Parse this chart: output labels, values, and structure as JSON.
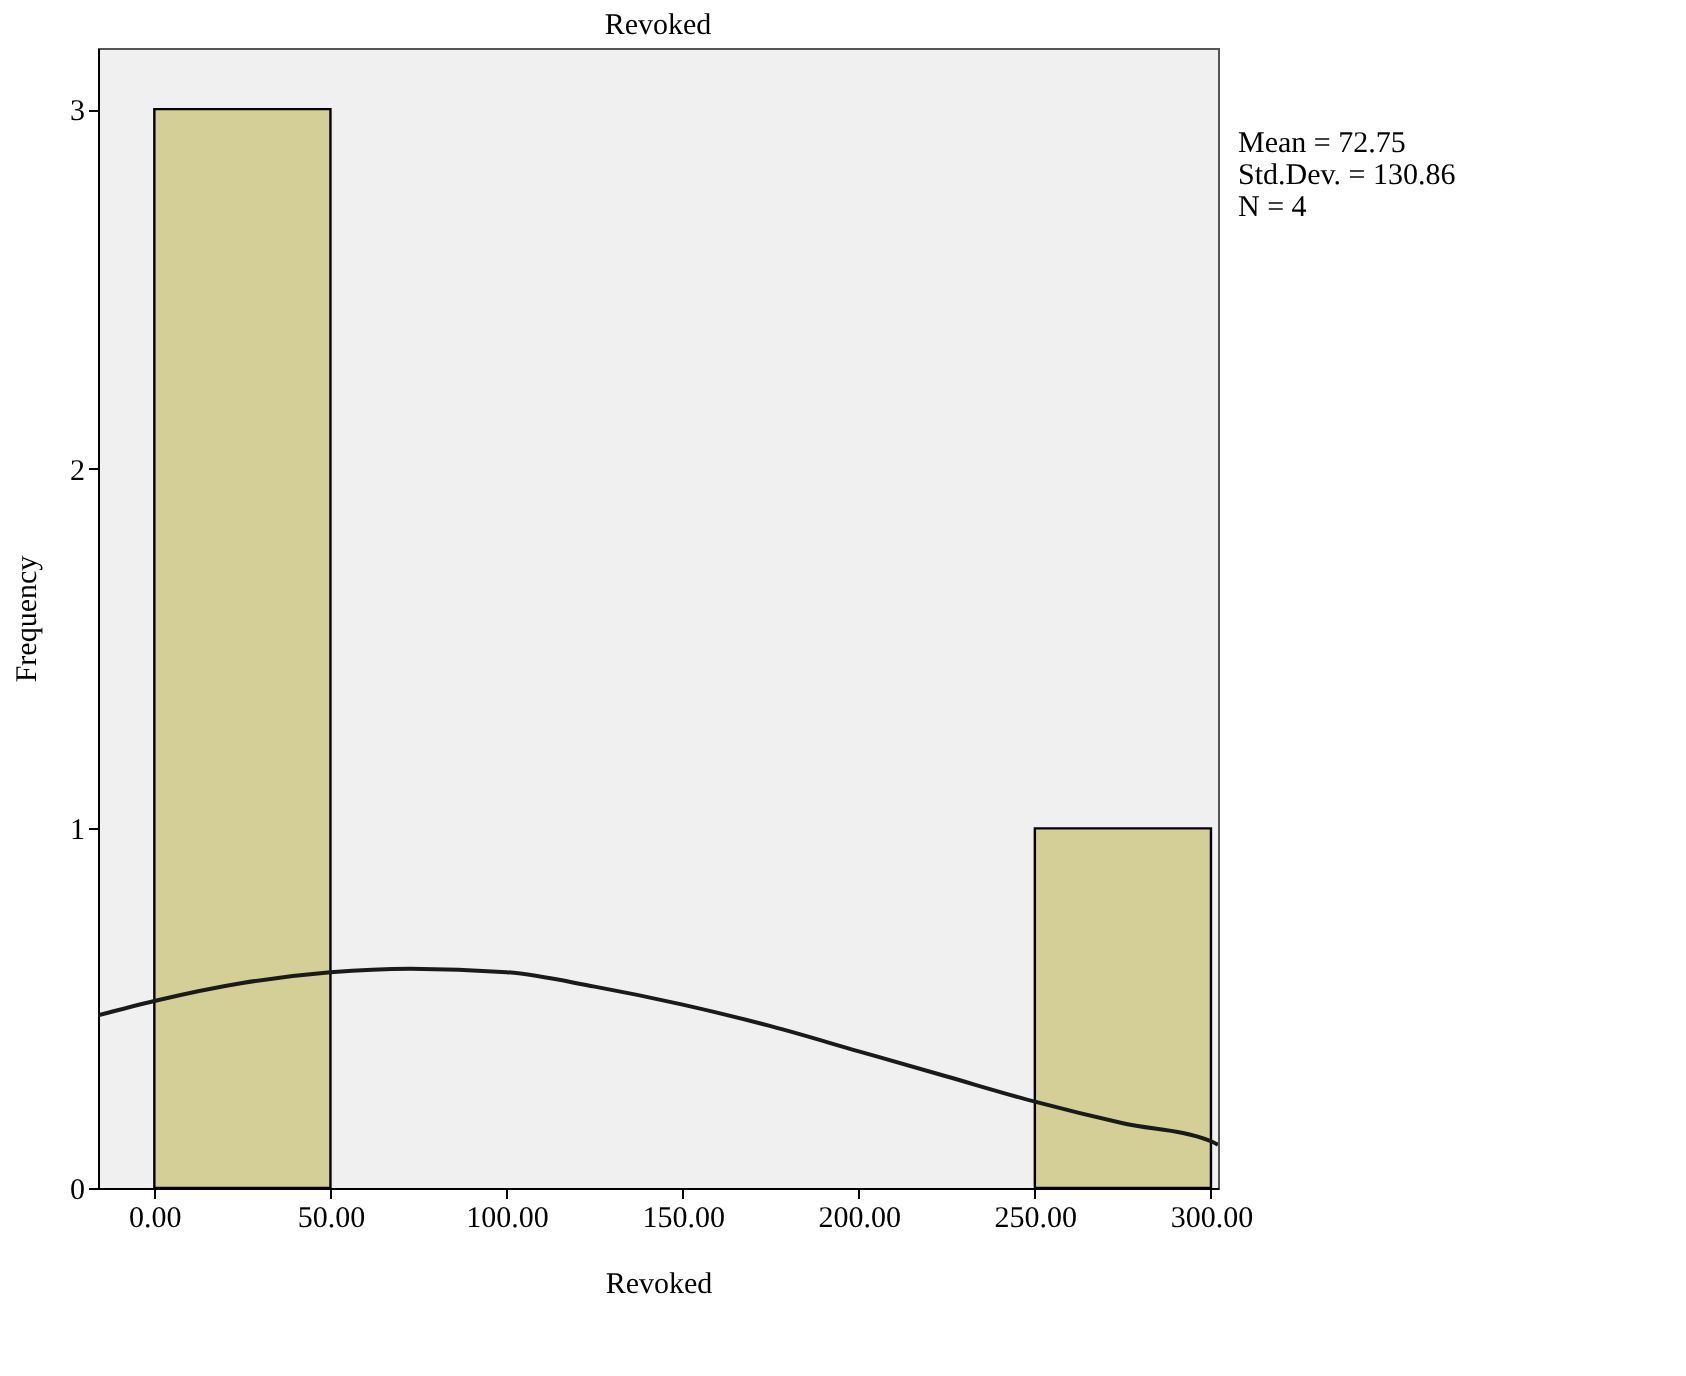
{
  "chart_data": {
    "type": "histogram",
    "title": "Revoked",
    "xlabel": "Revoked",
    "ylabel": "Frequency",
    "bins": [
      0,
      50,
      100,
      150,
      200,
      250,
      300
    ],
    "values": [
      3,
      0,
      0,
      0,
      0,
      1
    ],
    "color": "#d3cf96",
    "series": [
      {
        "type": "line",
        "color": "#1a1a1a",
        "x": [
          -16,
          0,
          25,
          50,
          72.75,
          100,
          125,
          150,
          175,
          200,
          225,
          250,
          275,
          300,
          302
        ],
        "values": [
          0.48,
          0.52,
          0.57,
          0.6,
          0.61,
          0.6,
          0.56,
          0.51,
          0.45,
          0.38,
          0.31,
          0.24,
          0.18,
          0.13,
          0.12
        ]
      }
    ],
    "xlim": [
      -16,
      302
    ],
    "ylim": [
      0,
      3.17
    ],
    "xticks": [
      {
        "value": 0,
        "label": "0.00"
      },
      {
        "value": 50,
        "label": "50.00"
      },
      {
        "value": 100,
        "label": "100.00"
      },
      {
        "value": 150,
        "label": "150.00"
      },
      {
        "value": 200,
        "label": "200.00"
      },
      {
        "value": 250,
        "label": "250.00"
      },
      {
        "value": 300,
        "label": "300.00"
      }
    ],
    "yticks": [
      0,
      1,
      2,
      3
    ],
    "grid": false,
    "annotations": [
      "Mean = 72.75",
      "Std.Dev. = 130.86",
      "N = 4"
    ]
  }
}
